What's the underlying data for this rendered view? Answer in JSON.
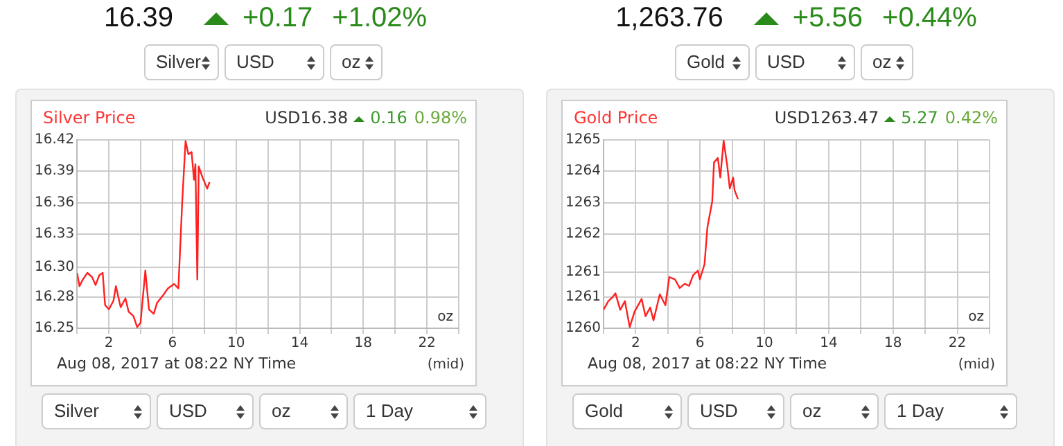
{
  "chart_data": [
    {
      "type": "line",
      "title": "Silver Price",
      "xlabel": "Aug 08, 2017 at 08:22 NY Time",
      "annotations": [
        "16.39",
        "+0.17",
        "+1.02%",
        "Silver",
        "USD",
        "oz",
        "USD16.38",
        "0.16",
        "0.98%",
        "oz",
        "(mid)",
        "Silver",
        "USD",
        "oz",
        "1 Day"
      ],
      "x": [
        0,
        0.15,
        0.36,
        0.65,
        0.95,
        1.16,
        1.4,
        1.61,
        1.76,
        2.0,
        2.29,
        2.44,
        2.74,
        3.04,
        3.24,
        3.54,
        3.78,
        3.99,
        4.29,
        4.52,
        4.82,
        5.03,
        5.42,
        5.71,
        6.1,
        6.37,
        6.61,
        6.82,
        7.0,
        7.2,
        7.35,
        7.44,
        7.56,
        7.65,
        7.89,
        8.18,
        8.33
      ],
      "series": [
        {
          "color": "#ff2020",
          "values": [
            16.3,
            16.288,
            16.294,
            16.3,
            16.296,
            16.289,
            16.298,
            16.3,
            16.271,
            16.267,
            16.275,
            16.288,
            16.269,
            16.277,
            16.265,
            16.261,
            16.251,
            16.255,
            16.302,
            16.267,
            16.263,
            16.273,
            16.28,
            16.286,
            16.29,
            16.286,
            16.364,
            16.419,
            16.407,
            16.409,
            16.384,
            16.398,
            16.294,
            16.396,
            16.386,
            16.376,
            16.382
          ]
        }
      ],
      "xlim": [
        0,
        24
      ],
      "xticks": [
        {
          "value": 0,
          "label": null
        },
        2,
        {
          "value": 4,
          "label": null
        },
        6,
        {
          "value": 8,
          "label": null
        },
        10,
        {
          "value": 12,
          "label": null
        },
        14,
        {
          "value": 16,
          "label": null
        },
        18,
        {
          "value": 20,
          "label": null
        },
        22,
        {
          "value": 24,
          "label": null
        }
      ],
      "ylim": [
        16.25,
        16.42
      ],
      "yticks": [
        16.25,
        {
          "value": 16.2783,
          "label": "16.28"
        },
        {
          "value": 16.3049,
          "label": "16.30"
        },
        {
          "value": 16.335,
          "label": "16.33"
        },
        {
          "value": 16.3633,
          "label": "16.36"
        },
        {
          "value": 16.3917,
          "label": "16.39"
        },
        16.42
      ],
      "grid": true,
      "marker": "none"
    },
    {
      "type": "line",
      "title": "Gold Price",
      "xlabel": "Aug 08, 2017 at 08:22 NY Time",
      "annotations": [
        "1,263.76",
        "+5.56",
        "+0.44%",
        "Gold",
        "USD",
        "oz",
        "USD1263.47",
        "5.27",
        "0.42%",
        "oz",
        "(mid)",
        "Gold",
        "USD",
        "oz",
        "1 Day"
      ],
      "x": [
        0,
        0.3,
        0.59,
        0.74,
        1.04,
        1.33,
        1.63,
        1.93,
        2.37,
        2.61,
        2.9,
        3.11,
        3.5,
        3.85,
        4.09,
        4.44,
        4.74,
        5.04,
        5.33,
        5.57,
        5.87,
        5.99,
        6.28,
        6.46,
        6.76,
        6.87,
        7.11,
        7.26,
        7.47,
        7.7,
        7.85,
        8.06,
        8.15,
        8.36
      ],
      "series": [
        {
          "color": "#ff2020",
          "values": [
            1260.49,
            1260.72,
            1260.84,
            1260.93,
            1260.49,
            1260.72,
            1260.03,
            1260.44,
            1260.78,
            1260.32,
            1260.55,
            1260.21,
            1260.9,
            1260.61,
            1261.36,
            1261.3,
            1261.07,
            1261.18,
            1261.13,
            1261.41,
            1261.53,
            1261.3,
            1261.7,
            1262.68,
            1263.37,
            1264.4,
            1264.52,
            1264.0,
            1264.98,
            1264.29,
            1263.71,
            1264.0,
            1263.66,
            1263.43
          ]
        }
      ],
      "xlim": [
        0,
        24
      ],
      "xticks": [
        {
          "value": 0,
          "label": null
        },
        2,
        {
          "value": 4,
          "label": null
        },
        6,
        {
          "value": 8,
          "label": null
        },
        10,
        {
          "value": 12,
          "label": null
        },
        14,
        {
          "value": 16,
          "label": null
        },
        18,
        {
          "value": 20,
          "label": null
        },
        22,
        {
          "value": 24,
          "label": null
        }
      ],
      "ylim": [
        1260,
        1265
      ],
      "yticks": [
        1260,
        {
          "value": 1260.83,
          "label": "1261"
        },
        {
          "value": 1261.49,
          "label": "1261"
        },
        {
          "value": 1262.5,
          "label": "1262"
        },
        {
          "value": 1263.33,
          "label": "1263"
        },
        {
          "value": 1264.17,
          "label": "1264"
        },
        1265
      ],
      "grid": true,
      "marker": "none"
    }
  ]
}
